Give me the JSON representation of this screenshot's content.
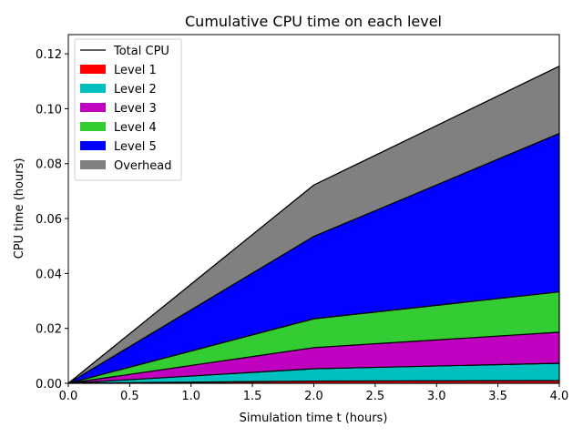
{
  "chart_data": {
    "type": "area",
    "title": "Cumulative CPU time on each level",
    "xlabel": "Simulation time t (hours)",
    "ylabel": "CPU time (hours)",
    "xlim": [
      0.0,
      4.0
    ],
    "ylim": [
      0.0,
      0.127
    ],
    "x": [
      0.0,
      2.0,
      4.0
    ],
    "xticks": [
      "0.0",
      "0.5",
      "1.0",
      "1.5",
      "2.0",
      "2.5",
      "3.0",
      "3.5",
      "4.0"
    ],
    "yticks": [
      "0.00",
      "0.02",
      "0.04",
      "0.06",
      "0.08",
      "0.10",
      "0.12"
    ],
    "stacked": true,
    "legend_location": "upper-left",
    "grid": false,
    "series": [
      {
        "name": "Level 1",
        "values": [
          0.0,
          0.0008,
          0.001
        ],
        "color": "#ff0000"
      },
      {
        "name": "Level 2",
        "values": [
          0.0,
          0.0045,
          0.0063
        ],
        "color": "#00bfbf"
      },
      {
        "name": "Level 3",
        "values": [
          0.0,
          0.0077,
          0.0113
        ],
        "color": "#bf00bf"
      },
      {
        "name": "Level 4",
        "values": [
          0.0,
          0.0105,
          0.0147
        ],
        "color": "#33cc33"
      },
      {
        "name": "Level 5",
        "values": [
          0.0,
          0.03,
          0.0577
        ],
        "color": "#0000ff"
      },
      {
        "name": "Overhead",
        "values": [
          0.0,
          0.0187,
          0.0245
        ],
        "color": "#808080"
      }
    ],
    "total": {
      "name": "Total CPU",
      "values": [
        0.0,
        0.0722,
        0.1155
      ],
      "color": "#000000"
    }
  }
}
